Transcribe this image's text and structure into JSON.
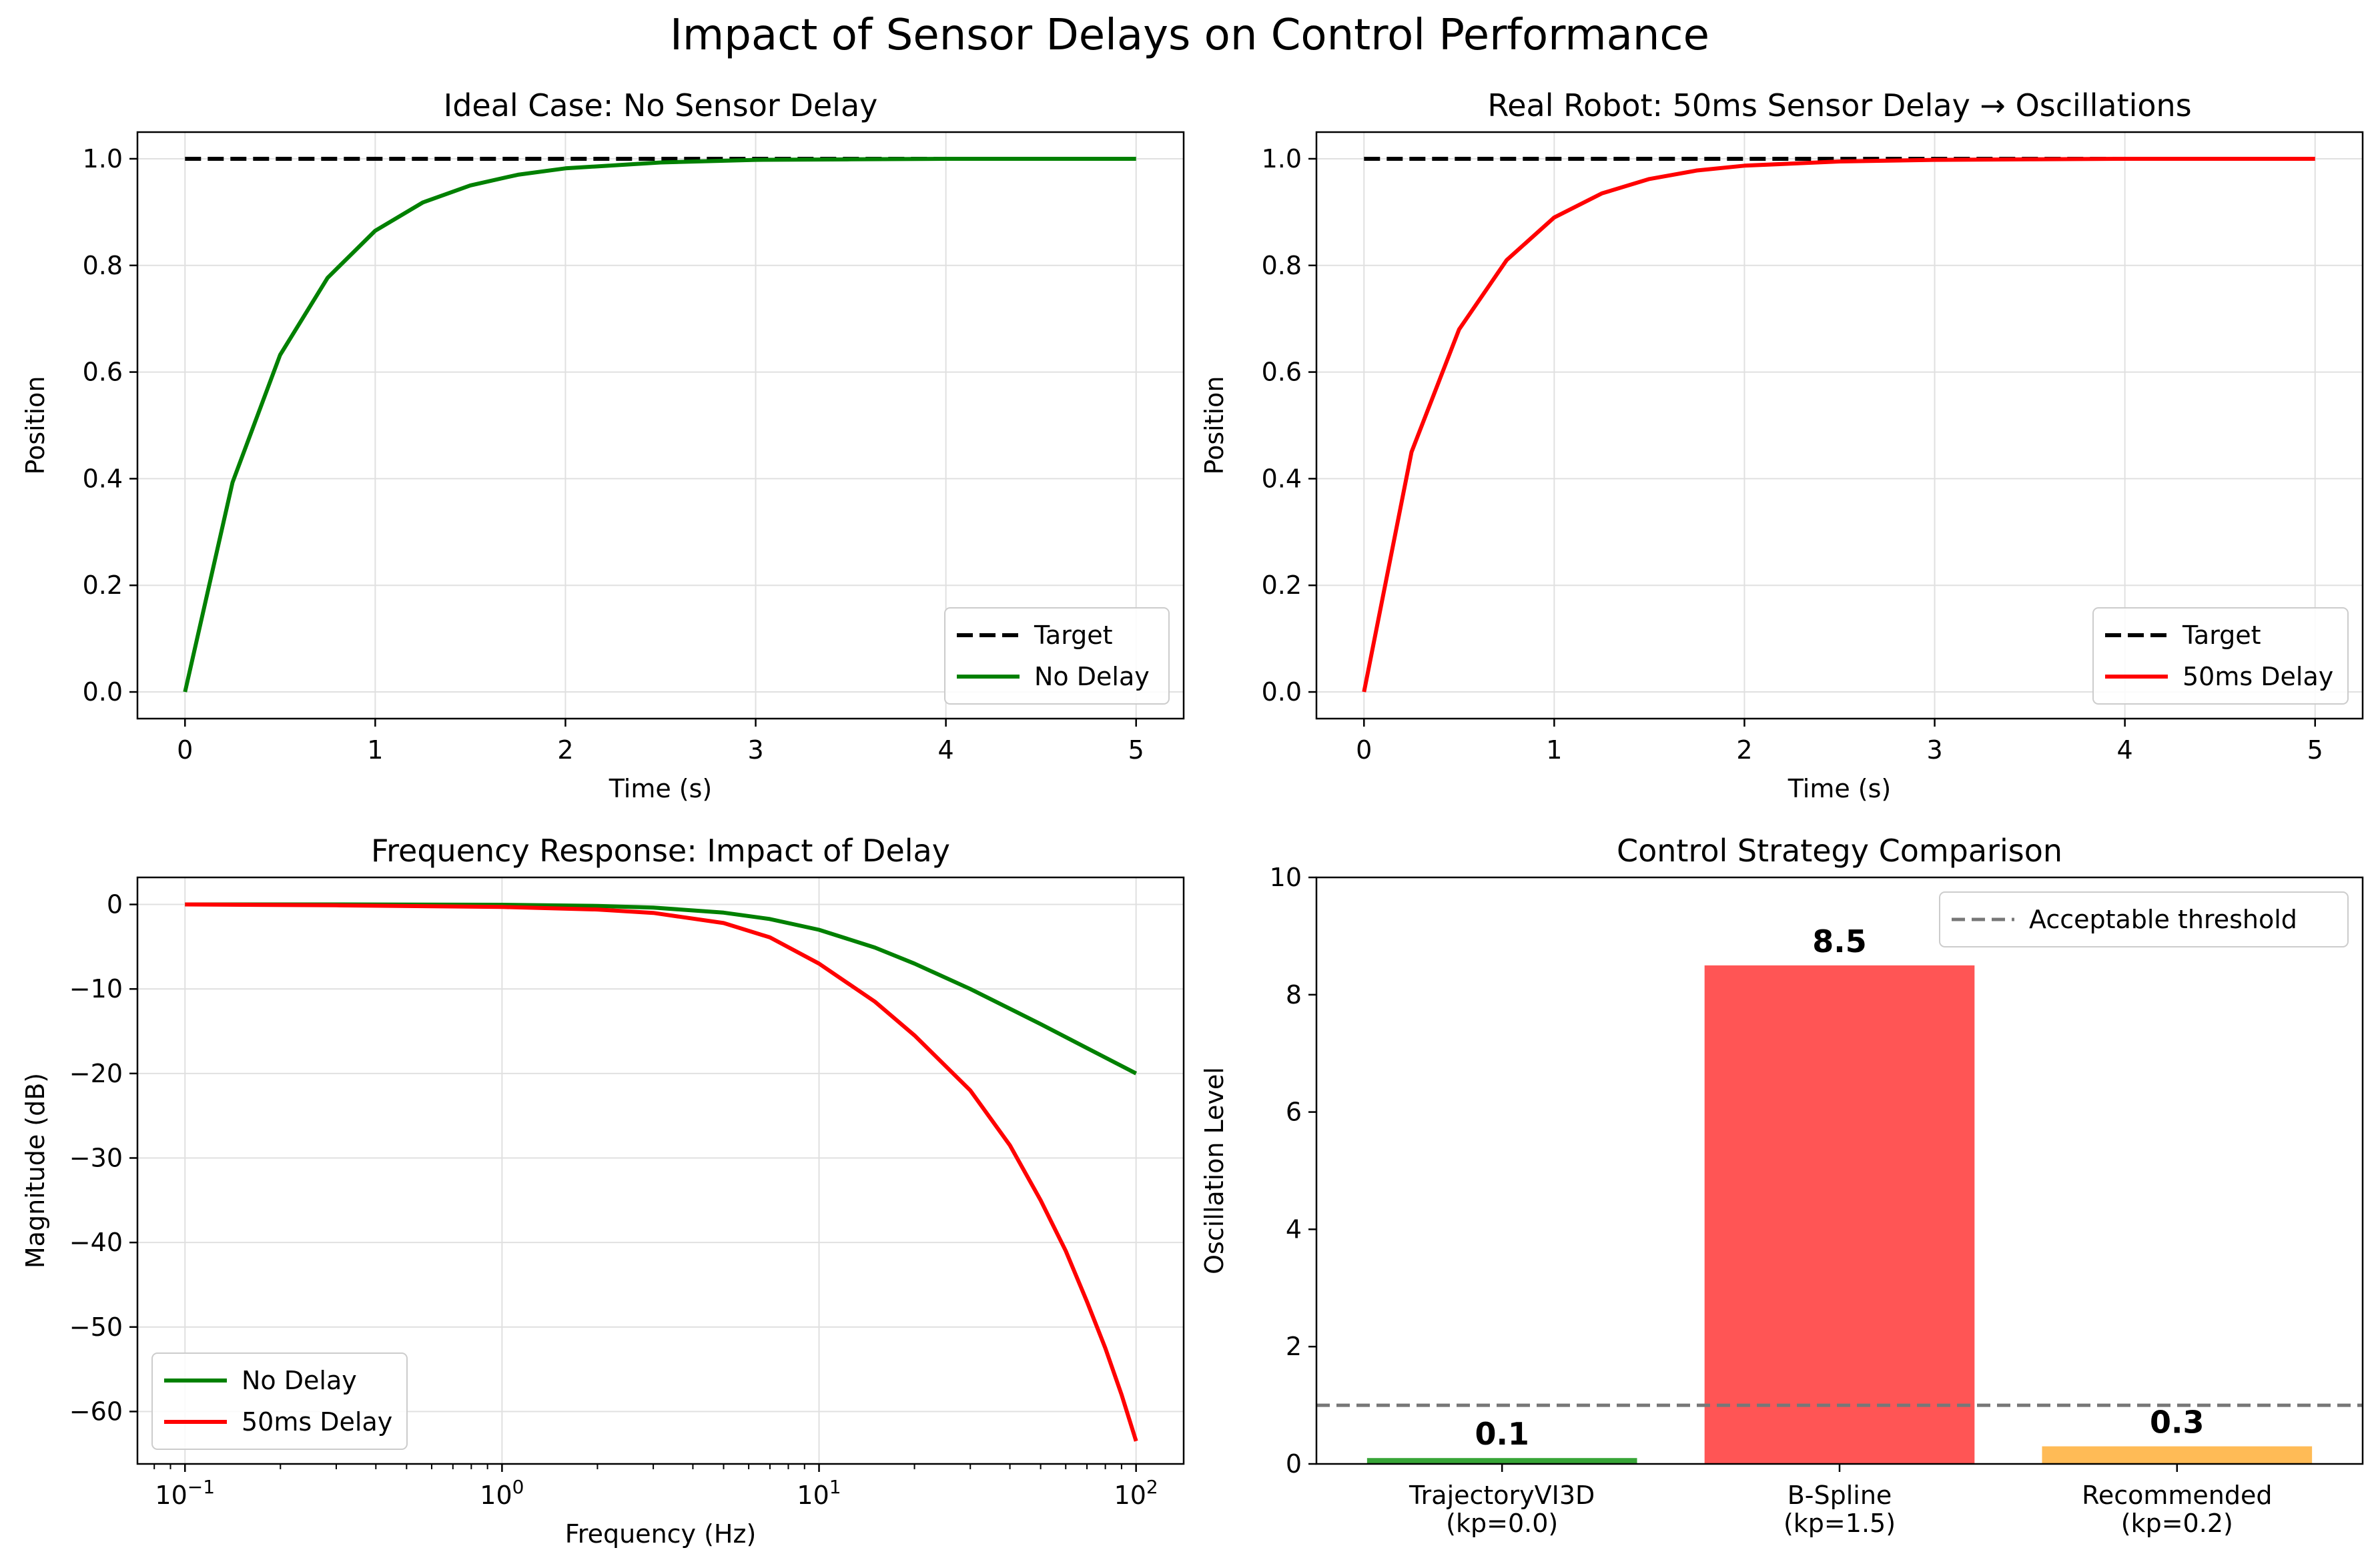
{
  "figure": {
    "title": "Impact of Sensor Delays on Control Performance"
  },
  "chart_data": [
    {
      "id": "ideal",
      "type": "line",
      "title": "Ideal Case: No Sensor Delay",
      "xlabel": "Time (s)",
      "ylabel": "Position",
      "xlim": [
        -0.25,
        5.25
      ],
      "ylim": [
        -0.05,
        1.05
      ],
      "xticks": [
        0,
        1,
        2,
        3,
        4,
        5
      ],
      "xtick_labels": [
        "0",
        "1",
        "2",
        "3",
        "4",
        "5"
      ],
      "yticks": [
        0.0,
        0.2,
        0.4,
        0.6,
        0.8,
        1.0
      ],
      "ytick_labels": [
        "0.0",
        "0.2",
        "0.4",
        "0.6",
        "0.8",
        "1.0"
      ],
      "grid": true,
      "legend": "lower right",
      "series": [
        {
          "name": "Target",
          "color": "#000000",
          "style": "dashed",
          "x": [
            0,
            5
          ],
          "y": [
            1.0,
            1.0
          ]
        },
        {
          "name": "No Delay",
          "color": "#008000",
          "style": "solid",
          "x": [
            0,
            0.25,
            0.5,
            0.75,
            1.0,
            1.25,
            1.5,
            1.75,
            2.0,
            2.5,
            3.0,
            3.5,
            4.0,
            5.0
          ],
          "y": [
            0.0,
            0.393,
            0.632,
            0.777,
            0.865,
            0.918,
            0.95,
            0.97,
            0.982,
            0.993,
            0.998,
            0.999,
            1.0,
            1.0
          ]
        }
      ]
    },
    {
      "id": "real",
      "type": "line",
      "title": "Real Robot: 50ms Sensor Delay → Oscillations",
      "xlabel": "Time (s)",
      "ylabel": "Position",
      "xlim": [
        -0.25,
        5.25
      ],
      "ylim": [
        -0.05,
        1.05
      ],
      "xticks": [
        0,
        1,
        2,
        3,
        4,
        5
      ],
      "xtick_labels": [
        "0",
        "1",
        "2",
        "3",
        "4",
        "5"
      ],
      "yticks": [
        0.0,
        0.2,
        0.4,
        0.6,
        0.8,
        1.0
      ],
      "ytick_labels": [
        "0.0",
        "0.2",
        "0.4",
        "0.6",
        "0.8",
        "1.0"
      ],
      "grid": true,
      "legend": "lower right",
      "series": [
        {
          "name": "Target",
          "color": "#000000",
          "style": "dashed",
          "x": [
            0,
            5
          ],
          "y": [
            1.0,
            1.0
          ]
        },
        {
          "name": "50ms Delay",
          "color": "#ff0000",
          "style": "solid",
          "x": [
            0,
            0.25,
            0.5,
            0.75,
            1.0,
            1.25,
            1.5,
            1.75,
            2.0,
            2.5,
            3.0,
            3.5,
            4.0,
            5.0
          ],
          "y": [
            0.0,
            0.45,
            0.68,
            0.81,
            0.89,
            0.935,
            0.962,
            0.978,
            0.987,
            0.995,
            0.998,
            0.999,
            1.0,
            1.0
          ]
        }
      ]
    },
    {
      "id": "freq",
      "type": "line",
      "title": "Frequency Response: Impact of Delay",
      "xlabel": "Frequency (Hz)",
      "ylabel": "Magnitude (dB)",
      "xscale": "log",
      "xlim": [
        0.0708,
        141.3
      ],
      "ylim": [
        -66.2,
        3.2
      ],
      "xticks": [
        0.1,
        1,
        10,
        100
      ],
      "xtick_labels": [
        {
          "base": "10",
          "exp": "−1"
        },
        {
          "base": "10",
          "exp": "0"
        },
        {
          "base": "10",
          "exp": "1"
        },
        {
          "base": "10",
          "exp": "2"
        }
      ],
      "yticks": [
        0,
        -10,
        -20,
        -30,
        -40,
        -50,
        -60
      ],
      "ytick_labels": [
        "0",
        "−10",
        "−20",
        "−30",
        "−40",
        "−50",
        "−60"
      ],
      "grid": true,
      "legend": "lower left",
      "series": [
        {
          "name": "No Delay",
          "color": "#008000",
          "style": "solid",
          "x": [
            0.1,
            0.3,
            1,
            2,
            3,
            5,
            7,
            10,
            15,
            20,
            30,
            50,
            70,
            100
          ],
          "y": [
            0,
            0,
            -0.04,
            -0.17,
            -0.37,
            -0.97,
            -1.73,
            -3.0,
            -5.1,
            -7.0,
            -10.0,
            -14.15,
            -17.0,
            -20.0
          ]
        },
        {
          "name": "50ms Delay",
          "color": "#ff0000",
          "style": "solid",
          "x": [
            0.1,
            0.3,
            1,
            2,
            3,
            5,
            7,
            10,
            15,
            20,
            30,
            40,
            50,
            60,
            70,
            80,
            90,
            100
          ],
          "y": [
            0,
            -0.1,
            -0.3,
            -0.6,
            -1.0,
            -2.2,
            -3.9,
            -7.0,
            -11.5,
            -15.5,
            -22.0,
            -28.5,
            -35.0,
            -41.0,
            -47.0,
            -52.5,
            -58.0,
            -63.5
          ]
        }
      ]
    },
    {
      "id": "strategy",
      "type": "bar",
      "title": "Control Strategy Comparison",
      "xlabel": "",
      "ylabel": "Oscillation Level",
      "ylim": [
        0,
        10
      ],
      "yticks": [
        0,
        2,
        4,
        6,
        8,
        10
      ],
      "ytick_labels": [
        "0",
        "2",
        "4",
        "6",
        "8",
        "10"
      ],
      "legend": "upper right",
      "categories": [
        [
          "TrajectoryVI3D",
          "(kp=0.0)"
        ],
        [
          "B-Spline",
          "(kp=1.5)"
        ],
        [
          "Recommended",
          "(kp=0.2)"
        ]
      ],
      "values": [
        0.1,
        8.5,
        0.3
      ],
      "value_labels": [
        "0.1",
        "8.5",
        "0.3"
      ],
      "colors": [
        "#2ca02c",
        "#ff4c4c",
        "#ffb74d"
      ],
      "threshold": {
        "name": "Acceptable threshold",
        "value": 1.0,
        "color": "#777777",
        "style": "dashed"
      }
    }
  ]
}
